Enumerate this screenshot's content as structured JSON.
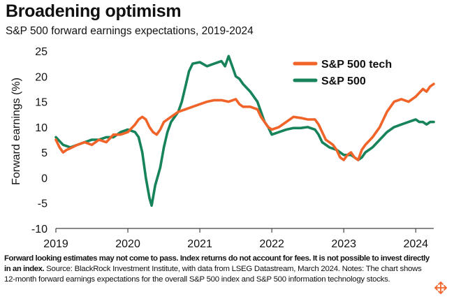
{
  "title": "Broadening optimism",
  "subtitle": "S&P 500 forward earnings expectations, 2019-2024",
  "footnote": {
    "bold": "Forward looking estimates may not come to pass. Index returns do not account for fees. It is not possible to invest directly in an index.",
    "regular": " Source: BlackRock Investment Institute, with data from LSEG Datastream, March 2024. Notes: The chart shows 12-month forward earnings expectations for the overall S&P 500 index and S&P 500 information technology stocks."
  },
  "icons": {
    "zoom": "zoom-move-icon"
  },
  "colors": {
    "tech": "#F0642A",
    "index": "#16835A",
    "axis": "#444444",
    "grid": "#dddddd"
  },
  "chart_data": {
    "type": "line",
    "title": "Broadening optimism",
    "xlabel": "",
    "ylabel": "Forward earnings (%)",
    "xlim": [
      2019.0,
      2024.25
    ],
    "ylim": [
      -10,
      25
    ],
    "yticks": [
      -10,
      -5,
      0,
      5,
      10,
      15,
      20,
      25
    ],
    "xticks": [
      {
        "value": 2019,
        "label": "2019"
      },
      {
        "value": 2020,
        "label": "2020"
      },
      {
        "value": 2021,
        "label": "2021"
      },
      {
        "value": 2022,
        "label": "2022"
      },
      {
        "value": 2023,
        "label": "2023"
      },
      {
        "value": 2024,
        "label": "2024"
      }
    ],
    "grid": false,
    "legend_position": "top-right",
    "series": [
      {
        "name": "S&P 500 tech",
        "color": "#F0642A",
        "points": [
          [
            2019.0,
            7.5
          ],
          [
            2019.05,
            6.0
          ],
          [
            2019.1,
            5.0
          ],
          [
            2019.15,
            5.5
          ],
          [
            2019.2,
            5.8
          ],
          [
            2019.3,
            6.5
          ],
          [
            2019.4,
            7.0
          ],
          [
            2019.5,
            6.5
          ],
          [
            2019.6,
            7.5
          ],
          [
            2019.7,
            7.0
          ],
          [
            2019.8,
            8.5
          ],
          [
            2019.9,
            8.5
          ],
          [
            2020.0,
            9.0
          ],
          [
            2020.1,
            10.5
          ],
          [
            2020.15,
            11.5
          ],
          [
            2020.2,
            12.0
          ],
          [
            2020.25,
            11.5
          ],
          [
            2020.3,
            10.0
          ],
          [
            2020.35,
            9.0
          ],
          [
            2020.4,
            8.5
          ],
          [
            2020.45,
            9.5
          ],
          [
            2020.5,
            11.0
          ],
          [
            2020.6,
            12.0
          ],
          [
            2020.7,
            13.0
          ],
          [
            2020.8,
            13.5
          ],
          [
            2020.9,
            14.0
          ],
          [
            2021.0,
            14.5
          ],
          [
            2021.1,
            15.0
          ],
          [
            2021.2,
            15.3
          ],
          [
            2021.3,
            15.3
          ],
          [
            2021.4,
            15.0
          ],
          [
            2021.5,
            15.5
          ],
          [
            2021.55,
            14.5
          ],
          [
            2021.6,
            14.0
          ],
          [
            2021.7,
            14.0
          ],
          [
            2021.8,
            13.5
          ],
          [
            2021.85,
            12.0
          ],
          [
            2021.9,
            11.0
          ],
          [
            2021.95,
            10.0
          ],
          [
            2022.0,
            9.5
          ],
          [
            2022.1,
            10.0
          ],
          [
            2022.2,
            11.0
          ],
          [
            2022.3,
            12.0
          ],
          [
            2022.4,
            11.8
          ],
          [
            2022.5,
            11.5
          ],
          [
            2022.6,
            11.5
          ],
          [
            2022.65,
            10.5
          ],
          [
            2022.7,
            9.0
          ],
          [
            2022.75,
            7.5
          ],
          [
            2022.8,
            7.0
          ],
          [
            2022.85,
            6.5
          ],
          [
            2022.9,
            5.5
          ],
          [
            2022.95,
            4.0
          ],
          [
            2023.0,
            3.5
          ],
          [
            2023.05,
            4.5
          ],
          [
            2023.1,
            5.0
          ],
          [
            2023.15,
            4.0
          ],
          [
            2023.2,
            3.5
          ],
          [
            2023.25,
            5.5
          ],
          [
            2023.3,
            6.5
          ],
          [
            2023.4,
            8.0
          ],
          [
            2023.5,
            10.0
          ],
          [
            2023.6,
            13.0
          ],
          [
            2023.7,
            15.0
          ],
          [
            2023.8,
            15.5
          ],
          [
            2023.9,
            15.0
          ],
          [
            2024.0,
            16.0
          ],
          [
            2024.1,
            17.5
          ],
          [
            2024.15,
            17.0
          ],
          [
            2024.2,
            18.0
          ],
          [
            2024.25,
            18.5
          ]
        ]
      },
      {
        "name": "S&P 500",
        "color": "#16835A",
        "points": [
          [
            2019.0,
            8.0
          ],
          [
            2019.1,
            6.5
          ],
          [
            2019.2,
            6.0
          ],
          [
            2019.3,
            6.5
          ],
          [
            2019.4,
            7.0
          ],
          [
            2019.5,
            7.5
          ],
          [
            2019.6,
            7.5
          ],
          [
            2019.7,
            8.0
          ],
          [
            2019.8,
            8.0
          ],
          [
            2019.9,
            9.0
          ],
          [
            2020.0,
            9.5
          ],
          [
            2020.1,
            9.0
          ],
          [
            2020.15,
            8.0
          ],
          [
            2020.2,
            5.0
          ],
          [
            2020.25,
            0.0
          ],
          [
            2020.3,
            -4.0
          ],
          [
            2020.33,
            -5.5
          ],
          [
            2020.38,
            -1.5
          ],
          [
            2020.45,
            2.0
          ],
          [
            2020.5,
            6.0
          ],
          [
            2020.55,
            9.0
          ],
          [
            2020.6,
            11.0
          ],
          [
            2020.7,
            13.0
          ],
          [
            2020.75,
            15.0
          ],
          [
            2020.8,
            18.0
          ],
          [
            2020.85,
            21.0
          ],
          [
            2020.9,
            22.5
          ],
          [
            2021.0,
            22.8
          ],
          [
            2021.1,
            22.0
          ],
          [
            2021.2,
            22.5
          ],
          [
            2021.3,
            23.0
          ],
          [
            2021.35,
            22.0
          ],
          [
            2021.4,
            24.0
          ],
          [
            2021.45,
            22.0
          ],
          [
            2021.5,
            20.0
          ],
          [
            2021.55,
            19.5
          ],
          [
            2021.6,
            18.5
          ],
          [
            2021.7,
            17.0
          ],
          [
            2021.8,
            15.0
          ],
          [
            2021.85,
            13.0
          ],
          [
            2021.9,
            11.0
          ],
          [
            2021.95,
            10.0
          ],
          [
            2022.0,
            8.5
          ],
          [
            2022.1,
            9.0
          ],
          [
            2022.2,
            9.5
          ],
          [
            2022.3,
            9.8
          ],
          [
            2022.4,
            9.8
          ],
          [
            2022.5,
            10.0
          ],
          [
            2022.6,
            9.5
          ],
          [
            2022.65,
            8.5
          ],
          [
            2022.7,
            7.0
          ],
          [
            2022.8,
            6.0
          ],
          [
            2022.9,
            5.5
          ],
          [
            2022.95,
            5.0
          ],
          [
            2023.0,
            4.5
          ],
          [
            2023.1,
            4.5
          ],
          [
            2023.2,
            3.5
          ],
          [
            2023.25,
            4.0
          ],
          [
            2023.3,
            5.0
          ],
          [
            2023.4,
            6.0
          ],
          [
            2023.5,
            7.5
          ],
          [
            2023.6,
            9.0
          ],
          [
            2023.7,
            10.0
          ],
          [
            2023.8,
            10.5
          ],
          [
            2023.9,
            11.0
          ],
          [
            2024.0,
            11.5
          ],
          [
            2024.05,
            11.0
          ],
          [
            2024.1,
            11.0
          ],
          [
            2024.15,
            10.5
          ],
          [
            2024.2,
            11.0
          ],
          [
            2024.25,
            11.0
          ]
        ]
      }
    ]
  }
}
